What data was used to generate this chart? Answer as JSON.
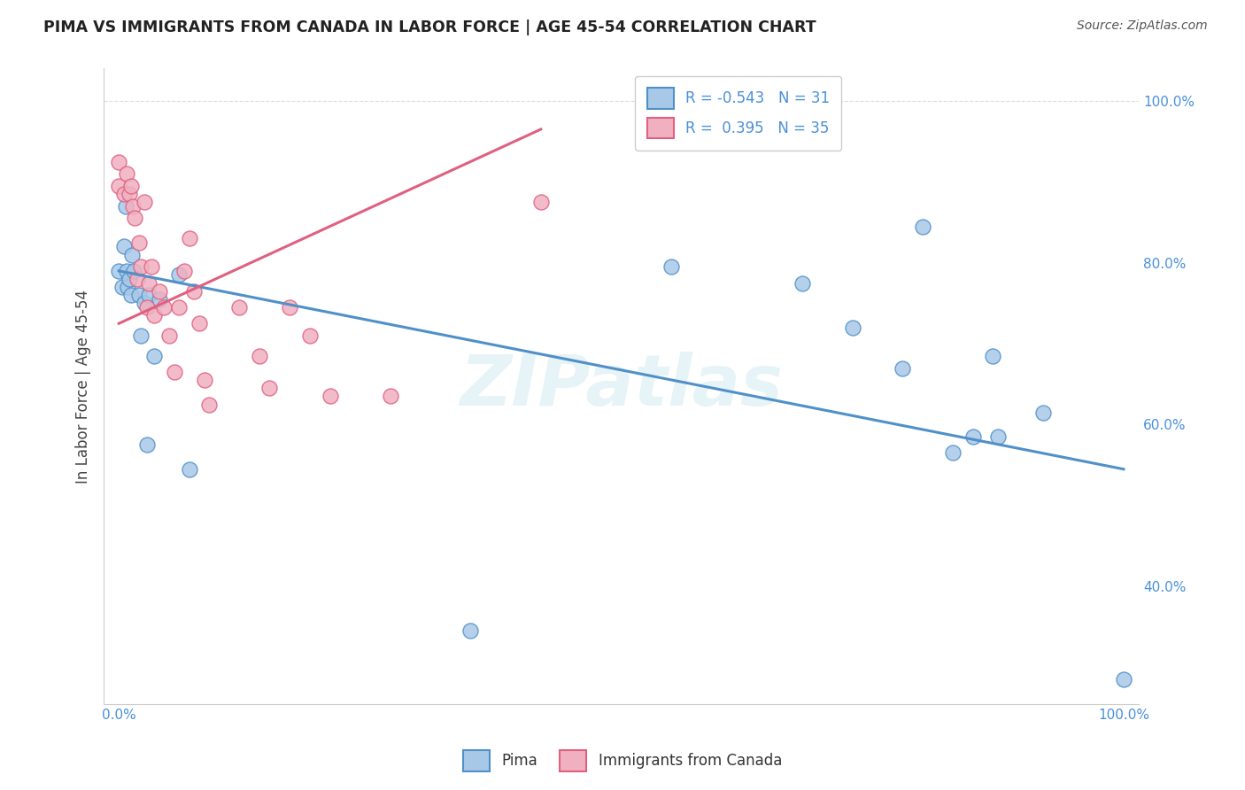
{
  "title": "PIMA VS IMMIGRANTS FROM CANADA IN LABOR FORCE | AGE 45-54 CORRELATION CHART",
  "source": "Source: ZipAtlas.com",
  "ylabel": "In Labor Force | Age 45-54",
  "xlim": [
    -0.015,
    1.015
  ],
  "ylim": [
    0.255,
    1.04
  ],
  "yticks": [
    0.4,
    0.6,
    0.8,
    1.0
  ],
  "ytick_labels": [
    "40.0%",
    "60.0%",
    "80.0%",
    "100.0%"
  ],
  "xtick_positions": [
    0.0,
    0.1,
    0.2,
    0.3,
    0.4,
    0.5,
    0.6,
    0.7,
    0.8,
    0.9,
    1.0
  ],
  "legend_r_blue": "-0.543",
  "legend_n_blue": "31",
  "legend_r_pink": "0.395",
  "legend_n_pink": "35",
  "blue_color": "#a8c8e8",
  "blue_edge_color": "#5090c8",
  "pink_color": "#f0b0c0",
  "pink_edge_color": "#e06080",
  "watermark": "ZIPatlas",
  "blue_scatter_x": [
    0.0,
    0.003,
    0.005,
    0.007,
    0.008,
    0.009,
    0.01,
    0.012,
    0.013,
    0.015,
    0.02,
    0.022,
    0.025,
    0.028,
    0.03,
    0.035,
    0.04,
    0.06,
    0.07,
    0.35,
    0.55,
    0.68,
    0.73,
    0.78,
    0.8,
    0.83,
    0.85,
    0.87,
    0.875,
    0.92,
    1.0
  ],
  "blue_scatter_y": [
    0.79,
    0.77,
    0.82,
    0.87,
    0.79,
    0.77,
    0.78,
    0.76,
    0.81,
    0.79,
    0.76,
    0.71,
    0.75,
    0.575,
    0.76,
    0.685,
    0.755,
    0.785,
    0.545,
    0.345,
    0.795,
    0.775,
    0.72,
    0.67,
    0.845,
    0.565,
    0.585,
    0.685,
    0.585,
    0.615,
    0.285
  ],
  "pink_scatter_x": [
    0.0,
    0.0,
    0.005,
    0.008,
    0.01,
    0.012,
    0.014,
    0.016,
    0.018,
    0.02,
    0.022,
    0.025,
    0.028,
    0.03,
    0.032,
    0.035,
    0.04,
    0.045,
    0.05,
    0.055,
    0.06,
    0.065,
    0.07,
    0.075,
    0.08,
    0.085,
    0.09,
    0.12,
    0.14,
    0.15,
    0.17,
    0.19,
    0.21,
    0.27,
    0.42
  ],
  "pink_scatter_y": [
    0.895,
    0.925,
    0.885,
    0.91,
    0.885,
    0.895,
    0.87,
    0.855,
    0.78,
    0.825,
    0.795,
    0.875,
    0.745,
    0.775,
    0.795,
    0.735,
    0.765,
    0.745,
    0.71,
    0.665,
    0.745,
    0.79,
    0.83,
    0.765,
    0.725,
    0.655,
    0.625,
    0.745,
    0.685,
    0.645,
    0.745,
    0.71,
    0.635,
    0.635,
    0.875
  ],
  "blue_trend_x": [
    0.0,
    1.0
  ],
  "blue_trend_y": [
    0.79,
    0.545
  ],
  "pink_trend_x": [
    0.0,
    0.42
  ],
  "pink_trend_y": [
    0.725,
    0.965
  ],
  "grid_color": "#dddddd",
  "tick_color": "#4a90d9",
  "title_color": "#222222",
  "source_color": "#555555"
}
